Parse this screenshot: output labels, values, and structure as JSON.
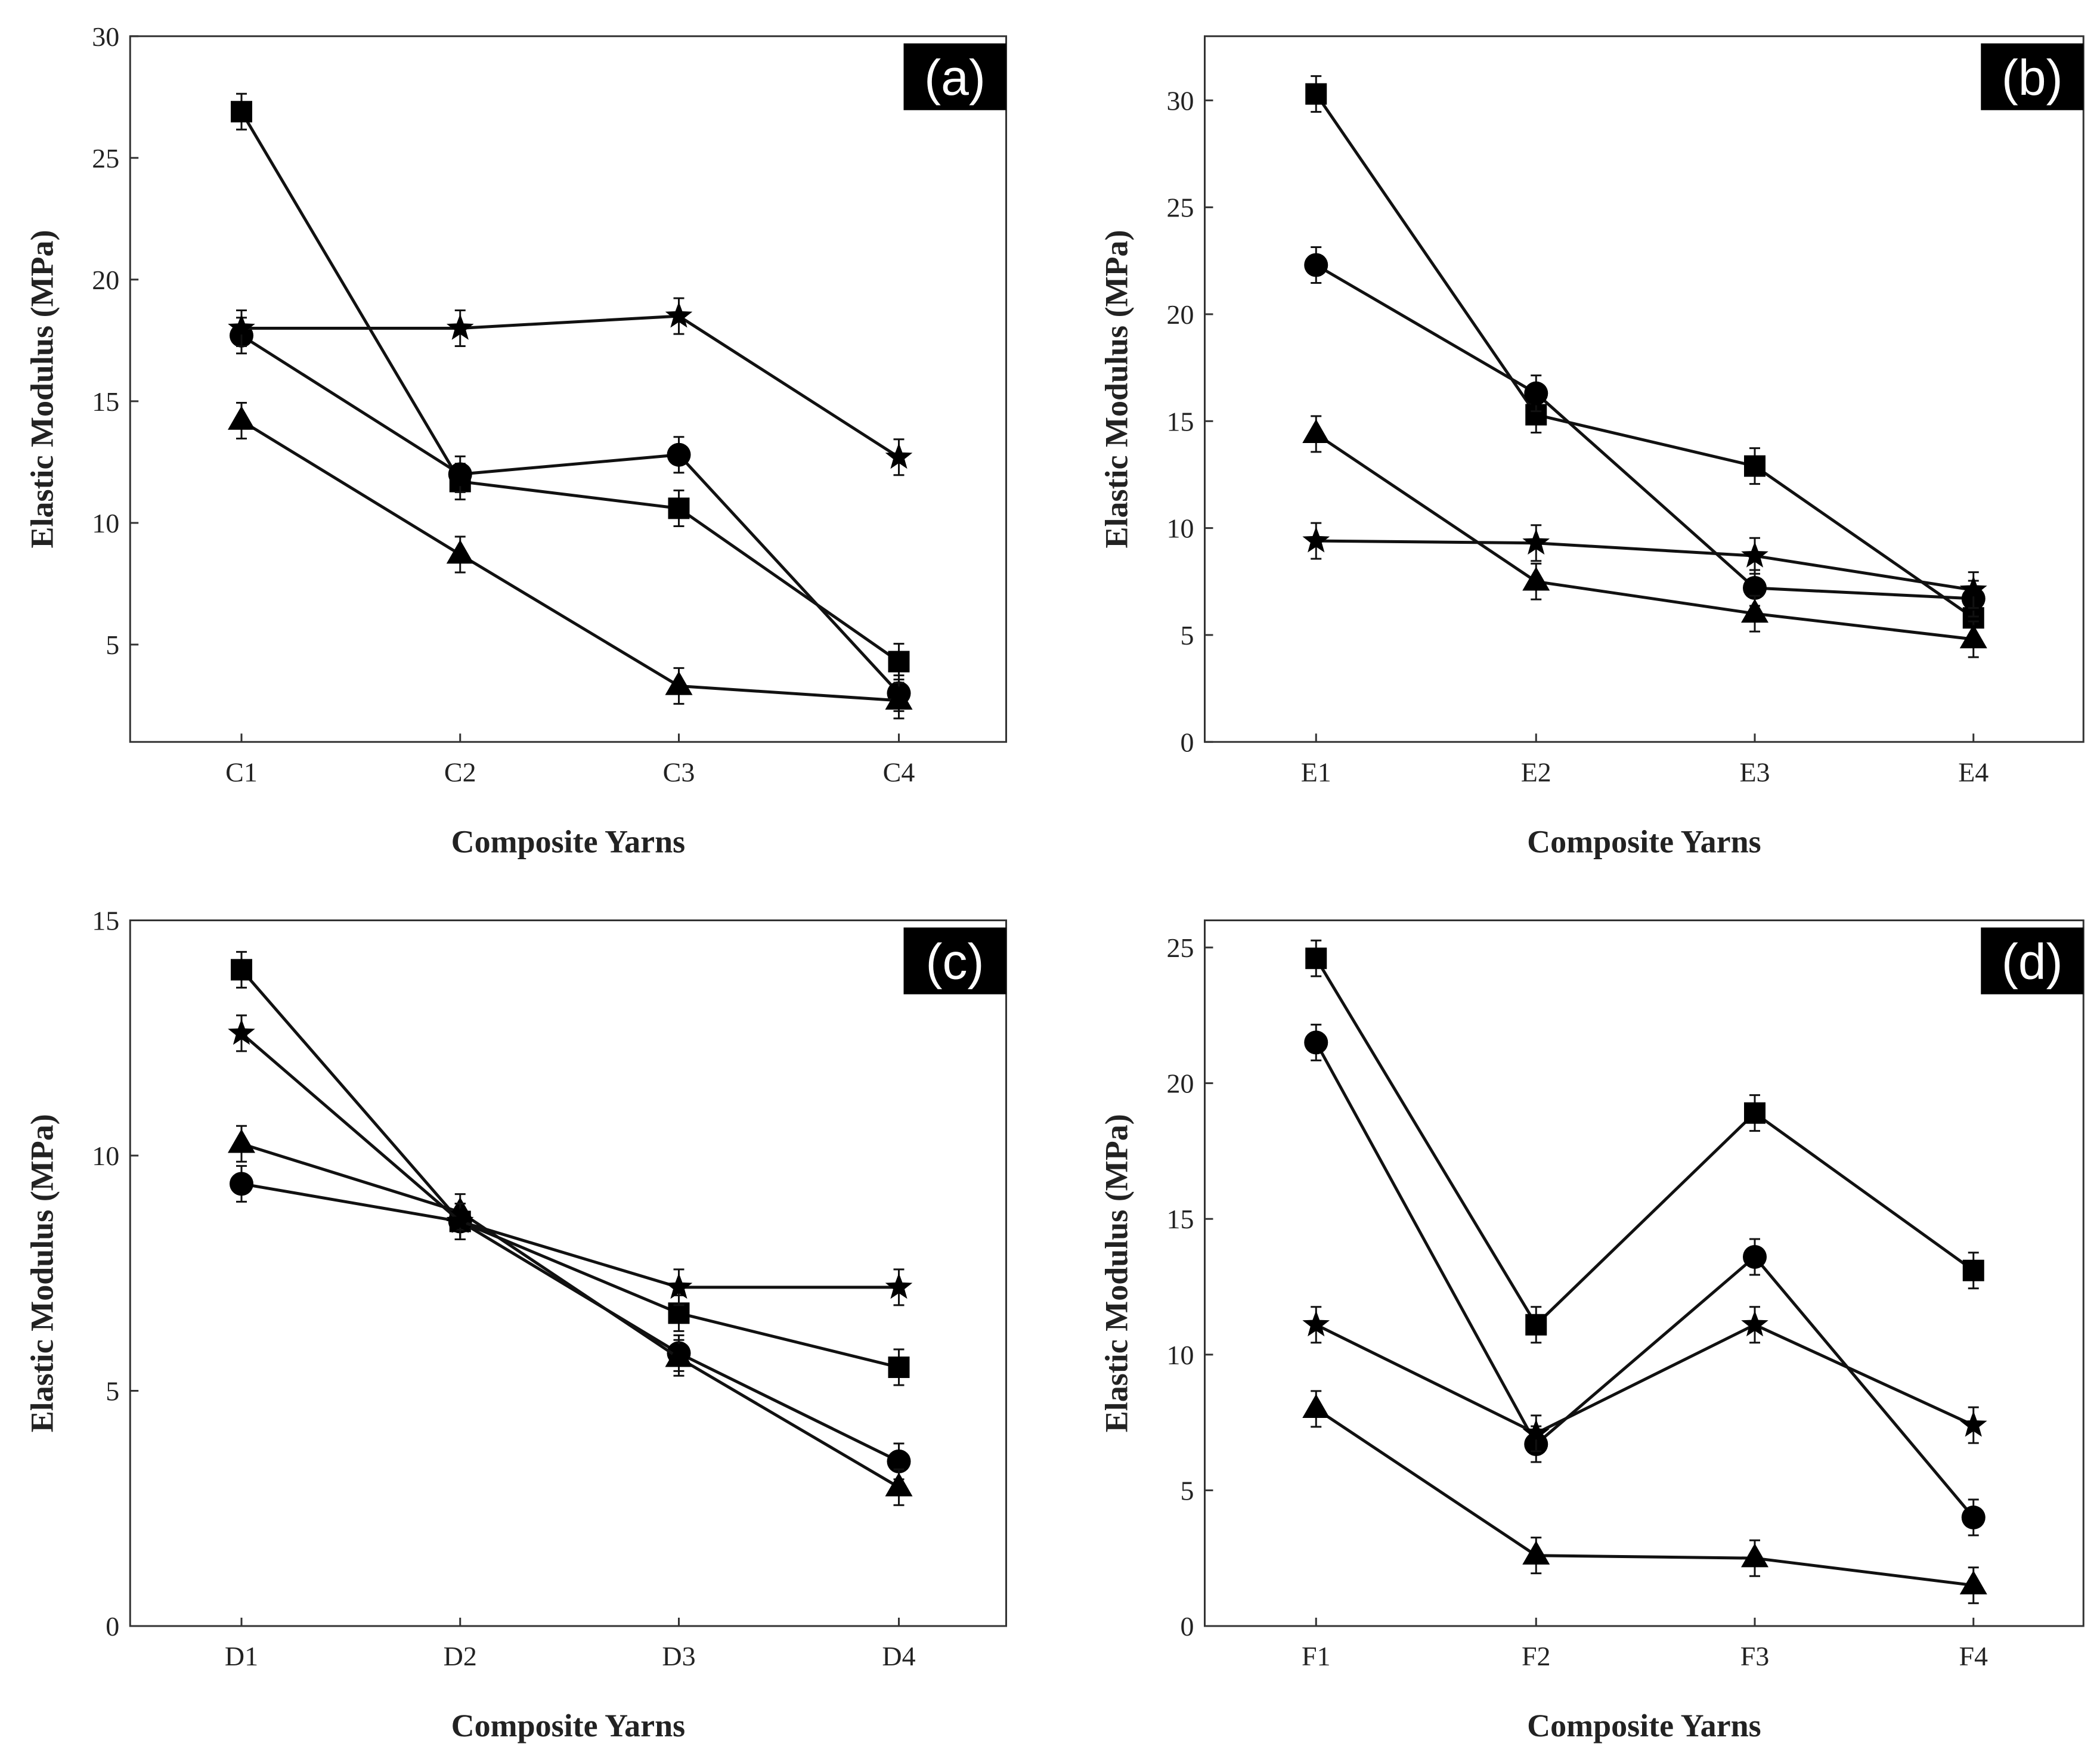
{
  "chart_data": [
    {
      "type": "line",
      "panel_label": "(a)",
      "categories": [
        "C1",
        "C2",
        "C3",
        "C4"
      ],
      "xlabel": "Composite Yarns",
      "ylabel": "Elastic Modulus (MPa)",
      "ylim": [
        1,
        30
      ],
      "yticks": [
        5,
        10,
        15,
        20,
        25,
        30
      ],
      "grid": false,
      "series": [
        {
          "marker": "square",
          "values": [
            26.9,
            11.7,
            10.6,
            4.3
          ]
        },
        {
          "marker": "circle",
          "values": [
            17.7,
            12.0,
            12.8,
            3.0
          ]
        },
        {
          "marker": "triangle",
          "values": [
            14.2,
            8.7,
            3.3,
            2.7
          ]
        },
        {
          "marker": "star",
          "values": [
            18.0,
            18.0,
            18.5,
            12.7
          ]
        }
      ]
    },
    {
      "type": "line",
      "panel_label": "(b)",
      "categories": [
        "E1",
        "E2",
        "E3",
        "E4"
      ],
      "xlabel": "Composite Yarns",
      "ylabel": "Elastic Modulus (MPa)",
      "ylim": [
        0,
        33
      ],
      "yticks": [
        0,
        5,
        10,
        15,
        20,
        25,
        30
      ],
      "grid": false,
      "series": [
        {
          "marker": "square",
          "values": [
            30.3,
            15.3,
            12.9,
            5.8
          ]
        },
        {
          "marker": "circle",
          "values": [
            22.3,
            16.3,
            7.2,
            6.7
          ]
        },
        {
          "marker": "triangle",
          "values": [
            14.4,
            7.5,
            6.0,
            4.8
          ]
        },
        {
          "marker": "star",
          "values": [
            9.4,
            9.3,
            8.7,
            7.1
          ]
        }
      ]
    },
    {
      "type": "line",
      "panel_label": "(c)",
      "categories": [
        "D1",
        "D2",
        "D3",
        "D4"
      ],
      "xlabel": "Composite Yarns",
      "ylabel": "Elastic Modulus (MPa)",
      "ylim": [
        0,
        15
      ],
      "yticks": [
        0,
        5,
        10,
        15
      ],
      "grid": false,
      "series": [
        {
          "marker": "square",
          "values": [
            13.95,
            8.6,
            6.65,
            5.5
          ]
        },
        {
          "marker": "circle",
          "values": [
            9.4,
            8.6,
            5.8,
            3.5
          ]
        },
        {
          "marker": "triangle",
          "values": [
            10.25,
            8.8,
            5.7,
            2.95
          ]
        },
        {
          "marker": "star",
          "values": [
            12.6,
            8.6,
            7.2,
            7.2
          ]
        }
      ]
    },
    {
      "type": "line",
      "panel_label": "(d)",
      "categories": [
        "F1",
        "F2",
        "F3",
        "F4"
      ],
      "xlabel": "Composite Yarns",
      "ylabel": "Elastic Modulus (MPa)",
      "ylim": [
        0,
        26
      ],
      "yticks": [
        0,
        5,
        10,
        15,
        20,
        25
      ],
      "grid": false,
      "series": [
        {
          "marker": "square",
          "values": [
            24.6,
            11.1,
            18.9,
            13.1
          ]
        },
        {
          "marker": "circle",
          "values": [
            21.5,
            6.7,
            13.6,
            4.0
          ]
        },
        {
          "marker": "triangle",
          "values": [
            8.0,
            2.6,
            2.5,
            1.5
          ]
        },
        {
          "marker": "star",
          "values": [
            11.1,
            7.1,
            11.1,
            7.4
          ]
        }
      ]
    }
  ]
}
